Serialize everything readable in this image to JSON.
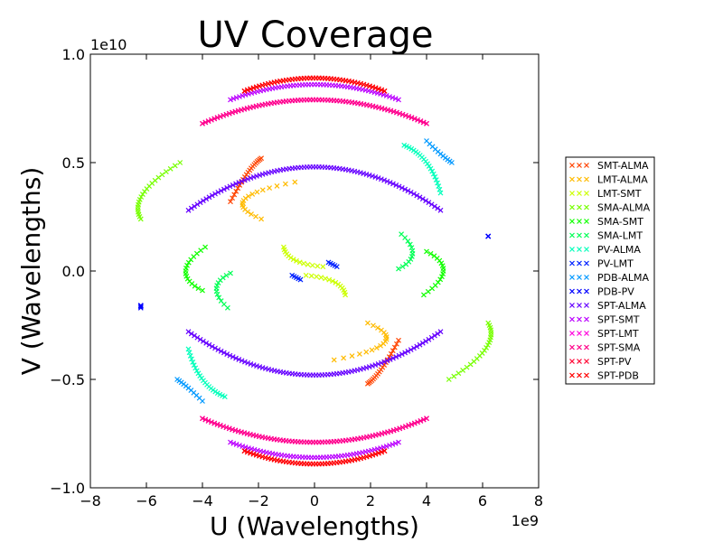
{
  "chart_data": {
    "type": "scatter",
    "title": "UV Coverage",
    "xlabel": "U (Wavelengths)",
    "ylabel": "V (Wavelengths)",
    "x_offset_label": "1e9",
    "y_offset_label": "1e10",
    "xlim": [
      -8,
      8
    ],
    "ylim": [
      -1.0,
      1.0
    ],
    "x_scale": 1000000000.0,
    "y_scale": 10000000000.0,
    "xticks": [
      -8,
      -6,
      -4,
      -2,
      0,
      2,
      4,
      6,
      8
    ],
    "xtick_labels": [
      "−8",
      "−6",
      "−4",
      "−2",
      "0",
      "2",
      "4",
      "6",
      "8"
    ],
    "yticks": [
      -1.0,
      -0.5,
      0.0,
      0.5,
      1.0
    ],
    "ytick_labels": [
      "−1.0",
      "−0.5",
      "0.0",
      "0.5",
      "1.0"
    ],
    "grid": false,
    "marker": "x",
    "legend_position": "right, outside plot",
    "series": [
      {
        "name": "SMT-ALMA",
        "color": "#ff4400",
        "arcs": [
          [
            -3.0,
            0.32,
            -2.4,
            0.45,
            -1.9,
            0.52
          ],
          [
            3.0,
            -0.32,
            2.4,
            -0.45,
            1.9,
            -0.52
          ]
        ]
      },
      {
        "name": "LMT-ALMA",
        "color": "#ffbb00",
        "arcs": [
          [
            -1.9,
            0.24,
            -2.5,
            0.33,
            -0.7,
            0.41
          ],
          [
            1.9,
            -0.24,
            2.5,
            -0.33,
            0.7,
            -0.41
          ]
        ]
      },
      {
        "name": "LMT-SMT",
        "color": "#ccff00",
        "arcs": [
          [
            -1.1,
            0.11,
            -0.7,
            0.05,
            0.3,
            0.02
          ],
          [
            1.1,
            -0.11,
            0.7,
            -0.05,
            -0.3,
            -0.02
          ]
        ]
      },
      {
        "name": "SMA-ALMA",
        "color": "#77ff00",
        "arcs": [
          [
            -6.2,
            0.24,
            -6.1,
            0.36,
            -4.8,
            0.5
          ],
          [
            6.2,
            -0.24,
            6.1,
            -0.36,
            4.8,
            -0.5
          ]
        ]
      },
      {
        "name": "SMA-SMT",
        "color": "#11ff00",
        "arcs": [
          [
            -3.9,
            0.11,
            -4.6,
            0.0,
            -4.0,
            -0.09
          ],
          [
            3.9,
            -0.11,
            4.6,
            0.0,
            4.0,
            0.09
          ]
        ]
      },
      {
        "name": "SMA-LMT",
        "color": "#00ff55",
        "arcs": [
          [
            -3.0,
            -0.01,
            -3.5,
            -0.08,
            -3.1,
            -0.17
          ],
          [
            3.0,
            0.01,
            3.5,
            0.08,
            3.1,
            0.17
          ]
        ]
      },
      {
        "name": "PV-ALMA",
        "color": "#00ffbb",
        "arcs": [
          [
            -4.5,
            -0.36,
            -4.0,
            -0.5,
            -3.2,
            -0.58
          ],
          [
            4.5,
            0.36,
            4.0,
            0.5,
            3.2,
            0.58
          ]
        ]
      },
      {
        "name": "PV-LMT",
        "color": "#0022ff",
        "arcs": [
          [
            -0.8,
            -0.02,
            -0.65,
            -0.03,
            -0.5,
            -0.04
          ],
          [
            0.8,
            0.02,
            0.65,
            0.03,
            0.5,
            0.04
          ]
        ]
      },
      {
        "name": "PDB-ALMA",
        "color": "#0099ff",
        "arcs": [
          [
            -4.9,
            -0.5,
            -4.5,
            -0.54,
            -4.0,
            -0.6
          ],
          [
            4.9,
            0.5,
            4.5,
            0.54,
            4.0,
            0.6
          ]
        ]
      },
      {
        "name": "PDB-PV",
        "color": "#0000ff",
        "arcs": [
          [
            -6.2,
            -0.16,
            -6.2,
            -0.16,
            -6.2,
            -0.17
          ],
          [
            6.2,
            0.16,
            6.2,
            0.16,
            6.2,
            0.16
          ]
        ]
      },
      {
        "name": "SPT-ALMA",
        "color": "#6600ff",
        "arcs": [
          [
            -4.5,
            0.28,
            0.0,
            0.48,
            4.5,
            0.28
          ],
          [
            -4.5,
            -0.28,
            0.0,
            -0.48,
            4.5,
            -0.28
          ]
        ]
      },
      {
        "name": "SPT-SMT",
        "color": "#bb00ff",
        "arcs": [
          [
            -3.0,
            0.79,
            0.0,
            0.86,
            3.0,
            0.79
          ],
          [
            -3.0,
            -0.79,
            0.0,
            -0.86,
            3.0,
            -0.79
          ]
        ]
      },
      {
        "name": "SPT-LMT",
        "color": "#ff00dd",
        "arcs": [
          [
            -4.0,
            0.68,
            0.0,
            0.79,
            4.0,
            0.68
          ],
          [
            -4.0,
            -0.68,
            0.0,
            -0.79,
            4.0,
            -0.68
          ]
        ]
      },
      {
        "name": "SPT-SMA",
        "color": "#ff0088",
        "arcs": [
          [
            -4.0,
            0.68,
            0.0,
            0.79,
            4.0,
            0.68
          ],
          [
            -4.0,
            -0.68,
            0.0,
            -0.79,
            4.0,
            -0.68
          ]
        ]
      },
      {
        "name": "SPT-PV",
        "color": "#ff0033",
        "arcs": [
          [
            -2.5,
            0.83,
            0.0,
            0.89,
            2.5,
            0.83
          ],
          [
            -2.5,
            -0.83,
            0.0,
            -0.89,
            2.5,
            -0.83
          ]
        ]
      },
      {
        "name": "SPT-PDB",
        "color": "#ff0000",
        "arcs": [
          [
            -2.5,
            0.83,
            0.0,
            0.89,
            2.5,
            0.83
          ],
          [
            -2.5,
            -0.83,
            0.0,
            -0.89,
            2.5,
            -0.83
          ]
        ]
      }
    ]
  }
}
